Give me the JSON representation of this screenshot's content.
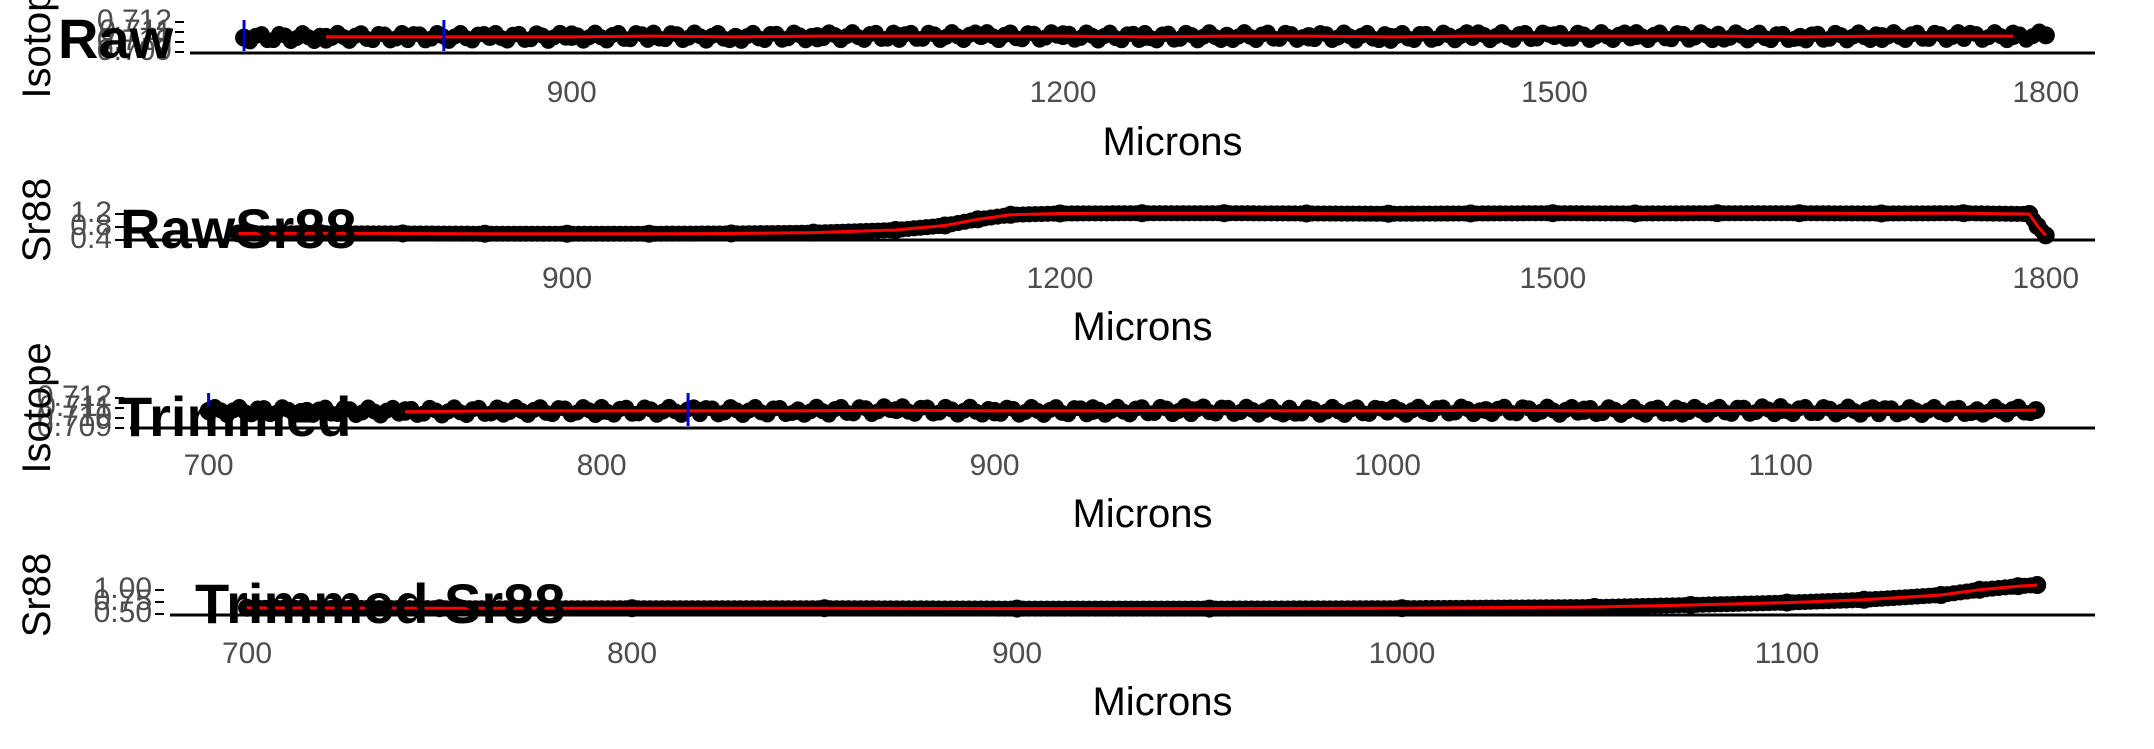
{
  "colors": {
    "points": "#000000",
    "fit_line": "#ff0000",
    "markers": "#0000cc",
    "axis": "#000000",
    "tick_text": "#4d4d4d"
  },
  "chart_data": [
    {
      "type": "scatter",
      "title": "Raw",
      "xlabel": "Microns",
      "ylabel": "Isotope",
      "xlim": [
        667,
        1830
      ],
      "xticks": [
        "900",
        "1200",
        "1500",
        "1800"
      ],
      "yticks": [
        "0.712",
        "0.711",
        "0.710",
        "0.709"
      ],
      "ylim": [
        0.7088,
        0.7125
      ],
      "blue_markers_x": [
        700,
        822
      ],
      "fit_line_x_range": [
        735,
        1780
      ],
      "series": [
        {
          "x": [
            700,
            750,
            800,
            850,
            900,
            950,
            1000,
            1050,
            1100,
            1150,
            1200,
            1250,
            1300,
            1350,
            1400,
            1450,
            1500,
            1550,
            1600,
            1650,
            1700,
            1750,
            1780,
            1800
          ],
          "y": [
            0.7105,
            0.7106,
            0.7106,
            0.7106,
            0.7106,
            0.7107,
            0.7106,
            0.7107,
            0.7107,
            0.7107,
            0.7107,
            0.7106,
            0.7107,
            0.7107,
            0.7106,
            0.7107,
            0.7107,
            0.7107,
            0.7107,
            0.7106,
            0.7107,
            0.7107,
            0.7107,
            0.7108
          ]
        }
      ]
    },
    {
      "type": "scatter",
      "title": "RawSr88",
      "xlabel": "Microns",
      "ylabel": "Sr88",
      "xlim": [
        634,
        1830
      ],
      "xticks": [
        "900",
        "1200",
        "1500",
        "1800"
      ],
      "yticks": [
        "1.2",
        "0.8",
        "0.4"
      ],
      "ylim": [
        0.25,
        1.3
      ],
      "series": [
        {
          "x": [
            700,
            750,
            800,
            850,
            900,
            950,
            1000,
            1050,
            1100,
            1130,
            1150,
            1170,
            1200,
            1250,
            1300,
            1350,
            1400,
            1450,
            1500,
            1550,
            1600,
            1650,
            1700,
            1750,
            1790,
            1795,
            1800
          ],
          "y": [
            0.42,
            0.43,
            0.42,
            0.41,
            0.41,
            0.41,
            0.42,
            0.45,
            0.55,
            0.72,
            0.95,
            1.12,
            1.17,
            1.18,
            1.18,
            1.17,
            1.16,
            1.17,
            1.18,
            1.17,
            1.18,
            1.18,
            1.17,
            1.18,
            1.15,
            0.7,
            0.35
          ]
        }
      ]
    },
    {
      "type": "scatter",
      "title": "Trimmed",
      "xlabel": "Microns",
      "ylabel": "Isotope",
      "xlim": [
        680,
        1180
      ],
      "xticks": [
        "700",
        "800",
        "900",
        "1000",
        "1100"
      ],
      "yticks": [
        "0.712",
        "0.711",
        "0.710",
        "0.709"
      ],
      "ylim": [
        0.7088,
        0.7125
      ],
      "blue_markers_x": [
        700,
        822
      ],
      "fit_line_x_range": [
        730,
        1165
      ],
      "series": [
        {
          "x": [
            700,
            725,
            750,
            775,
            800,
            825,
            850,
            875,
            900,
            925,
            950,
            975,
            1000,
            1025,
            1050,
            1075,
            1100,
            1125,
            1150,
            1165
          ],
          "y": [
            0.7106,
            0.7106,
            0.7105,
            0.7106,
            0.7106,
            0.7106,
            0.7106,
            0.7107,
            0.7106,
            0.7106,
            0.7107,
            0.7106,
            0.7106,
            0.7107,
            0.7106,
            0.7106,
            0.7107,
            0.7106,
            0.7106,
            0.7107
          ]
        }
      ]
    },
    {
      "type": "scatter",
      "title": "Trimmed Sr88",
      "xlabel": "Microns",
      "ylabel": "Sr88",
      "xlim": [
        680,
        1180
      ],
      "xticks": [
        "700",
        "800",
        "900",
        "1000",
        "1100"
      ],
      "yticks": [
        "1.00",
        "0.75",
        "0.50"
      ],
      "ylim": [
        0.3,
        1.05
      ],
      "series": [
        {
          "x": [
            700,
            750,
            800,
            850,
            900,
            950,
            1000,
            1050,
            1075,
            1100,
            1120,
            1140,
            1150,
            1160,
            1165
          ],
          "y": [
            0.43,
            0.42,
            0.42,
            0.42,
            0.41,
            0.41,
            0.42,
            0.45,
            0.5,
            0.56,
            0.63,
            0.75,
            0.88,
            0.97,
            1.0
          ]
        }
      ]
    }
  ]
}
